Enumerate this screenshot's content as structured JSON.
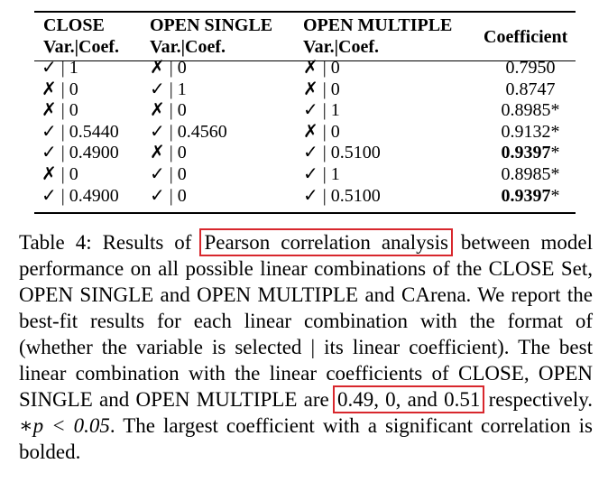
{
  "table": {
    "headers": {
      "close": {
        "line1": "CLOSE",
        "line2": "Var.|Coef."
      },
      "open_single": {
        "line1": "OPEN SINGLE",
        "line2": "Var.|Coef."
      },
      "open_multiple": {
        "line1": "OPEN MULTIPLE",
        "line2": "Var.|Coef."
      },
      "coefficient": "Coefficient"
    },
    "rows": [
      {
        "close": "✓ | 1",
        "open_single": "✗ | 0",
        "open_multiple": "✗ | 0",
        "coefficient": "0.7950",
        "sig": "",
        "bold": false
      },
      {
        "close": "✗ | 0",
        "open_single": "✓ | 1",
        "open_multiple": "✗ | 0",
        "coefficient": "0.8747",
        "sig": "",
        "bold": false
      },
      {
        "close": "✗ | 0",
        "open_single": "✗ | 0",
        "open_multiple": "✓ | 1",
        "coefficient": "0.8985",
        "sig": "*",
        "bold": false
      },
      {
        "close": "✓ | 0.5440",
        "open_single": "✓ | 0.4560",
        "open_multiple": "✗ | 0",
        "coefficient": "0.9132",
        "sig": "*",
        "bold": false
      },
      {
        "close": "✓ | 0.4900",
        "open_single": "✗ | 0",
        "open_multiple": "✓ | 0.5100",
        "coefficient": "0.9397",
        "sig": "*",
        "bold": true
      },
      {
        "close": "✗ | 0",
        "open_single": "✓ | 0",
        "open_multiple": "✓ | 1",
        "coefficient": "0.8985",
        "sig": "*",
        "bold": false
      },
      {
        "close": "✓ | 0.4900",
        "open_single": "✓ | 0",
        "open_multiple": "✓ | 0.5100",
        "coefficient": "0.9397",
        "sig": "*",
        "bold": true
      }
    ]
  },
  "caption": {
    "part1": "Table 4: Results of ",
    "highlight1": "Pearson correlation analysis",
    "part2": " between model performance on all possible linear combinations of the CLOSE Set, OPEN SINGLE and OPEN MULTIPLE and CArena. We report the best-fit results for each linear combination with the format of (whether the variable is selected | its linear coefficient). The best linear combination with the linear coefficients of CLOSE, OPEN SINGLE and OPEN MULTIPLE are ",
    "highlight2": "0.49, 0, and 0.51",
    "part3": " respectively. ",
    "math": "∗p < 0.05",
    "part4": ". The largest coefficient with a significant correlation is bolded."
  },
  "highlight_color": "#d8272d"
}
